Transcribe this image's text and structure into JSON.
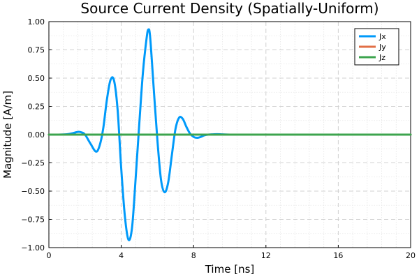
{
  "chart_data": {
    "type": "line",
    "title": "Source Current Density (Spatially-Uniform)",
    "xlabel": "Time [ns]",
    "ylabel": "Magnitude [A/m]",
    "xlim": [
      0,
      20
    ],
    "ylim": [
      -1.0,
      1.0
    ],
    "xticks": [
      0,
      4,
      8,
      12,
      16,
      20
    ],
    "xtick_labels": [
      "0",
      "4",
      "8",
      "12",
      "16",
      "20"
    ],
    "yticks": [
      -1.0,
      -0.75,
      -0.5,
      -0.25,
      0.0,
      0.25,
      0.5,
      0.75,
      1.0
    ],
    "ytick_labels": [
      "−1.00",
      "−0.75",
      "−0.50",
      "−0.25",
      "0.00",
      "0.25",
      "0.50",
      "0.75",
      "1.00"
    ],
    "grid": true,
    "minor_grid": true,
    "legend_position": "top-right",
    "series": [
      {
        "name": "Jx",
        "color": "#009AFA",
        "x": [
          0,
          0.5,
          1.0,
          1.3,
          1.6,
          1.8,
          2.0,
          2.3,
          2.6,
          2.8,
          3.0,
          3.2,
          3.4,
          3.6,
          3.8,
          4.0,
          4.2,
          4.4,
          4.6,
          4.8,
          5.0,
          5.2,
          5.4,
          5.5,
          5.6,
          5.8,
          6.0,
          6.2,
          6.4,
          6.6,
          6.8,
          7.0,
          7.2,
          7.4,
          7.6,
          7.8,
          8.0,
          8.2,
          8.4,
          8.6,
          8.8,
          9.0,
          9.3,
          9.6,
          10.0,
          11.0,
          20.0
        ],
        "y": [
          0,
          0,
          0.003,
          0.012,
          0.024,
          0.02,
          0.0,
          -0.08,
          -0.15,
          -0.1,
          0.05,
          0.3,
          0.48,
          0.48,
          0.22,
          -0.3,
          -0.72,
          -0.93,
          -0.82,
          -0.38,
          0.1,
          0.55,
          0.85,
          0.93,
          0.86,
          0.4,
          -0.05,
          -0.4,
          -0.51,
          -0.42,
          -0.18,
          0.05,
          0.15,
          0.14,
          0.07,
          0.01,
          -0.02,
          -0.028,
          -0.02,
          -0.006,
          0.0,
          0.002,
          0.004,
          0.002,
          0.0,
          0.0,
          0.0
        ]
      },
      {
        "name": "Jy",
        "color": "#E26F46",
        "x": [
          0,
          20
        ],
        "y": [
          0,
          0
        ]
      },
      {
        "name": "Jz",
        "color": "#3DA44E",
        "x": [
          0,
          20
        ],
        "y": [
          0,
          0
        ]
      }
    ]
  }
}
